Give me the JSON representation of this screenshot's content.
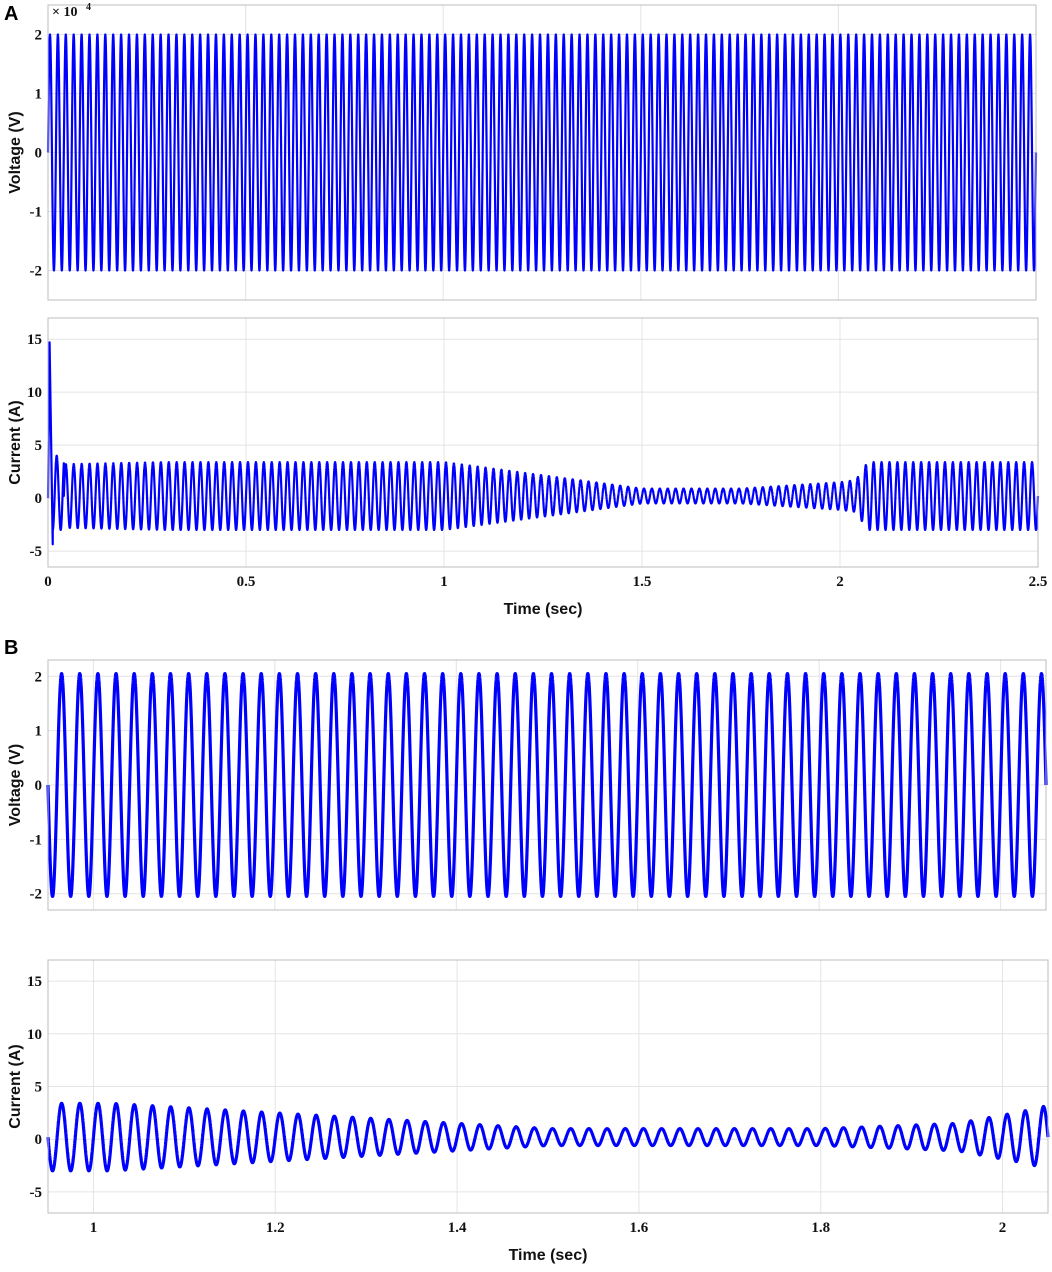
{
  "panels": [
    {
      "letter": "A"
    },
    {
      "letter": "B"
    }
  ],
  "chart_data": [
    {
      "id": "A-voltage",
      "type": "line",
      "panel": "A",
      "xlabel": "",
      "ylabel": "Voltage (V)",
      "multiplier": {
        "base": "× 10",
        "exponent": "4"
      },
      "xlim": [
        0,
        2.5
      ],
      "ylim": [
        -2.5,
        2.5
      ],
      "xticks": [
        0,
        0.5,
        1,
        1.5,
        2,
        2.5
      ],
      "yticks": [
        2,
        1,
        0,
        -1,
        -2
      ],
      "ytick_labels": [
        "2",
        "1",
        "0",
        "-1",
        "-2"
      ],
      "grid": true,
      "color": "#0000ff",
      "series": [
        {
          "frequency_hz": 50,
          "amplitude": 2.0,
          "note_values_scaled": true
        }
      ]
    },
    {
      "id": "A-current",
      "type": "line",
      "panel": "A",
      "xlabel": "Time (sec)",
      "ylabel": "Current (A)",
      "xlim": [
        0,
        2.5
      ],
      "ylim": [
        -6.5,
        17
      ],
      "xticks": [
        0,
        0.5,
        1,
        1.5,
        2,
        2.5
      ],
      "xtick_labels": [
        "0",
        "0.5",
        "1",
        "1.5",
        "2",
        "2.5"
      ],
      "yticks": [
        15,
        10,
        5,
        0,
        -5
      ],
      "ytick_labels": [
        "15",
        "10",
        "5",
        "0",
        "-5"
      ],
      "grid": true,
      "color": "#0000ff",
      "series": [
        {
          "frequency_hz": 50,
          "offset": 0.2,
          "peak_start": 14.7,
          "amplitude_envelope": [
            {
              "t": 0.04,
              "a": 3.0
            },
            {
              "t": 0.3,
              "a": 3.2
            },
            {
              "t": 1.0,
              "a": 3.2
            },
            {
              "t": 1.5,
              "a": 0.7
            },
            {
              "t": 1.75,
              "a": 0.7
            },
            {
              "t": 2.0,
              "a": 1.3
            },
            {
              "t": 2.04,
              "a": 1.5
            },
            {
              "t": 2.07,
              "a": 3.2
            },
            {
              "t": 2.5,
              "a": 3.2
            }
          ]
        }
      ]
    },
    {
      "id": "B-voltage",
      "type": "line",
      "panel": "B",
      "xlabel": "",
      "ylabel": "Voltage (V)",
      "xlim": [
        0.95,
        2.05
      ],
      "ylim": [
        -2.3,
        2.3
      ],
      "xticks": [
        1,
        1.2,
        1.4,
        1.6,
        1.8,
        2
      ],
      "yticks": [
        2,
        1,
        0,
        -1,
        -2
      ],
      "ytick_labels": [
        "2",
        "1",
        "0",
        "-1",
        "-2"
      ],
      "grid": true,
      "color": "#0000ff",
      "series": [
        {
          "frequency_hz": 50,
          "amplitude": 2.05
        }
      ]
    },
    {
      "id": "B-current",
      "type": "line",
      "panel": "B",
      "xlabel": "Time (sec)",
      "ylabel": "Current (A)",
      "xlim": [
        0.95,
        2.05
      ],
      "ylim": [
        -7,
        17
      ],
      "xticks": [
        1,
        1.2,
        1.4,
        1.6,
        1.8,
        2
      ],
      "xtick_labels": [
        "1",
        "1.2",
        "1.4",
        "1.6",
        "1.8",
        "2"
      ],
      "yticks": [
        15,
        10,
        5,
        0,
        -5
      ],
      "ytick_labels": [
        "15",
        "10",
        "5",
        "0",
        "-5"
      ],
      "grid": true,
      "color": "#0000ff",
      "series": [
        {
          "frequency_hz": 50,
          "offset": 0.2,
          "amplitude_envelope": [
            {
              "t": 0.95,
              "a": 3.2
            },
            {
              "t": 1.02,
              "a": 3.2
            },
            {
              "t": 1.4,
              "a": 1.3
            },
            {
              "t": 1.5,
              "a": 0.8
            },
            {
              "t": 1.8,
              "a": 0.8
            },
            {
              "t": 1.95,
              "a": 1.3
            },
            {
              "t": 2.02,
              "a": 2.4
            },
            {
              "t": 2.05,
              "a": 3.0
            }
          ]
        }
      ]
    }
  ]
}
